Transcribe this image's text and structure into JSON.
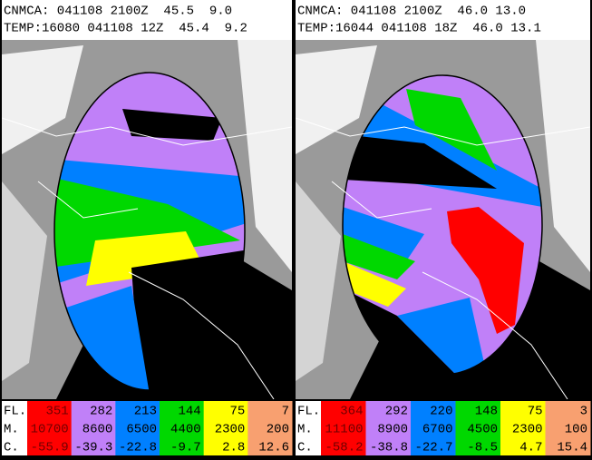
{
  "panels": [
    {
      "header": [
        "CNMCA: 041108 2100Z  45.5  9.0",
        "TEMP:16080 041108 12Z  45.4  9.2"
      ],
      "legend": {
        "labels": [
          "FL.",
          "M.",
          "C."
        ],
        "rows": [
          [
            "351",
            "282",
            "213",
            "144",
            "75",
            "7"
          ],
          [
            "10700",
            "8600",
            "6500",
            "4400",
            "2300",
            "200"
          ],
          [
            "-55.9",
            "-39.3",
            "-22.8",
            "-9.7",
            "2.8",
            "12.6"
          ]
        ]
      }
    },
    {
      "header": [
        "CNMCA: 041108 2100Z  46.0 13.0",
        "TEMP:16044 041108 18Z  46.0 13.1"
      ],
      "legend": {
        "labels": [
          "FL.",
          "M.",
          "C."
        ],
        "rows": [
          [
            "364",
            "292",
            "220",
            "148",
            "75",
            "3"
          ],
          [
            "11100",
            "8900",
            "6700",
            "4500",
            "2300",
            "100"
          ],
          [
            "-58.2",
            "-38.8",
            "-22.7",
            "-8.5",
            "4.7",
            "15.4"
          ]
        ]
      }
    }
  ]
}
